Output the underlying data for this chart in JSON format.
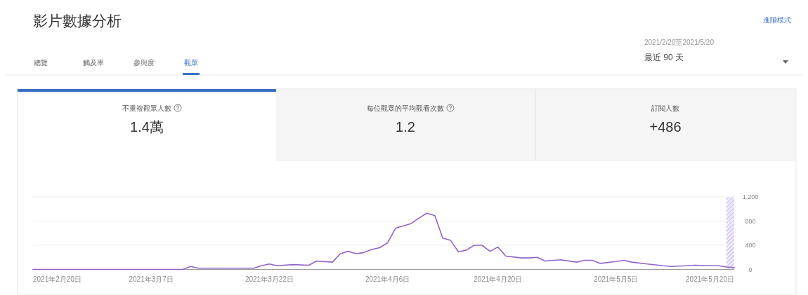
{
  "chart_data": {
    "type": "line",
    "title": "影片數據分析",
    "annotations": [
      "進階模式",
      "總覽",
      "觸及率",
      "參與度",
      "觀眾",
      "2021/2/20至2021/5/20",
      "最近 90 天",
      "不重複觀眾人數",
      "1.4萬",
      "每位觀眾的平均觀看次數",
      "1.2",
      "訂閱人數",
      "+486"
    ],
    "x": [
      "2021-02-20",
      "2021-03-11",
      "2021-03-12",
      "2021-03-13",
      "2021-03-16",
      "2021-03-18",
      "2021-03-20",
      "2021-03-21",
      "2021-03-22",
      "2021-03-23",
      "2021-03-25",
      "2021-03-27",
      "2021-03-28",
      "2021-03-30",
      "2021-03-31",
      "2021-04-01",
      "2021-04-02",
      "2021-04-03",
      "2021-04-04",
      "2021-04-05",
      "2021-04-06",
      "2021-04-07",
      "2021-04-09",
      "2021-04-10",
      "2021-04-11",
      "2021-04-12",
      "2021-04-13",
      "2021-04-14",
      "2021-04-15",
      "2021-04-16",
      "2021-04-17",
      "2021-04-18",
      "2021-04-19",
      "2021-04-20",
      "2021-04-21",
      "2021-04-23",
      "2021-04-24",
      "2021-04-25",
      "2021-04-26",
      "2021-04-28",
      "2021-04-30",
      "2021-05-01",
      "2021-05-02",
      "2021-05-03",
      "2021-05-05",
      "2021-05-06",
      "2021-05-07",
      "2021-05-09",
      "2021-05-11",
      "2021-05-12",
      "2021-05-14",
      "2021-05-15",
      "2021-05-17",
      "2021-05-18",
      "2021-05-19",
      "2021-05-20"
    ],
    "series": [
      {
        "color": "#8f65c8",
        "values": [
          0,
          0,
          50,
          20,
          20,
          20,
          20,
          60,
          90,
          60,
          80,
          70,
          140,
          120,
          260,
          300,
          260,
          280,
          330,
          360,
          440,
          680,
          760,
          850,
          930,
          890,
          520,
          480,
          290,
          320,
          400,
          400,
          300,
          370,
          220,
          190,
          190,
          200,
          140,
          160,
          120,
          150,
          150,
          100,
          130,
          150,
          120,
          90,
          60,
          50,
          60,
          70,
          60,
          60,
          40,
          30
        ]
      }
    ],
    "xlim": [
      "2021-02-20",
      "2021-05-20"
    ],
    "xticks": [
      {
        "value": "2021-02-20",
        "label": "2021年2月20日"
      },
      {
        "value": "2021-03-07",
        "label": "2021年3月7日"
      },
      {
        "value": "2021-03-22",
        "label": "2021年3月22日"
      },
      {
        "value": "2021-04-06",
        "label": "2021年4月6日"
      },
      {
        "value": "2021-04-20",
        "label": "2021年4月20日"
      },
      {
        "value": "2021-05-05",
        "label": "2021年5月5日"
      },
      {
        "value": "2021-05-20",
        "label": "2021年5月20日"
      }
    ],
    "ylim": [
      0,
      1200
    ],
    "yticks": [
      0,
      400,
      800,
      {
        "value": 1200,
        "label": "1,200"
      }
    ],
    "bands": [
      {
        "axis": "x",
        "from": "2021-05-19",
        "to": "2021-05-20",
        "color": "#c9b6ee"
      }
    ],
    "grid": "y",
    "marker": "none",
    "line_style": "solid"
  }
}
